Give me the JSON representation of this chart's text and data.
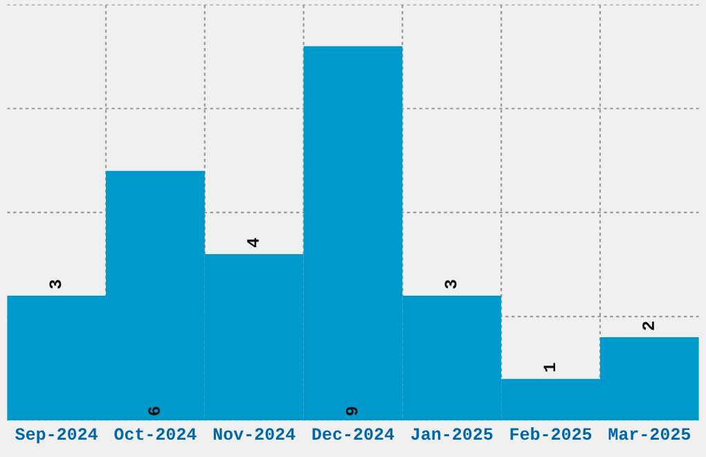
{
  "chart_data": {
    "type": "bar",
    "categories": [
      "Sep-2024",
      "Oct-2024",
      "Nov-2024",
      "Dec-2024",
      "Jan-2025",
      "Feb-2025",
      "Mar-2025"
    ],
    "values": [
      3,
      6,
      4,
      9,
      3,
      1,
      2
    ],
    "color": "#0099cc",
    "ylim": [
      0,
      10
    ],
    "yticks": [
      {
        "value": 0,
        "label": null
      },
      {
        "value": 2.5,
        "label": null
      },
      {
        "value": 5,
        "label": null
      },
      {
        "value": 7.5,
        "label": null
      },
      {
        "value": 10,
        "label": null
      }
    ],
    "tick_labels": "x",
    "grid": true,
    "data_labels": true
  }
}
